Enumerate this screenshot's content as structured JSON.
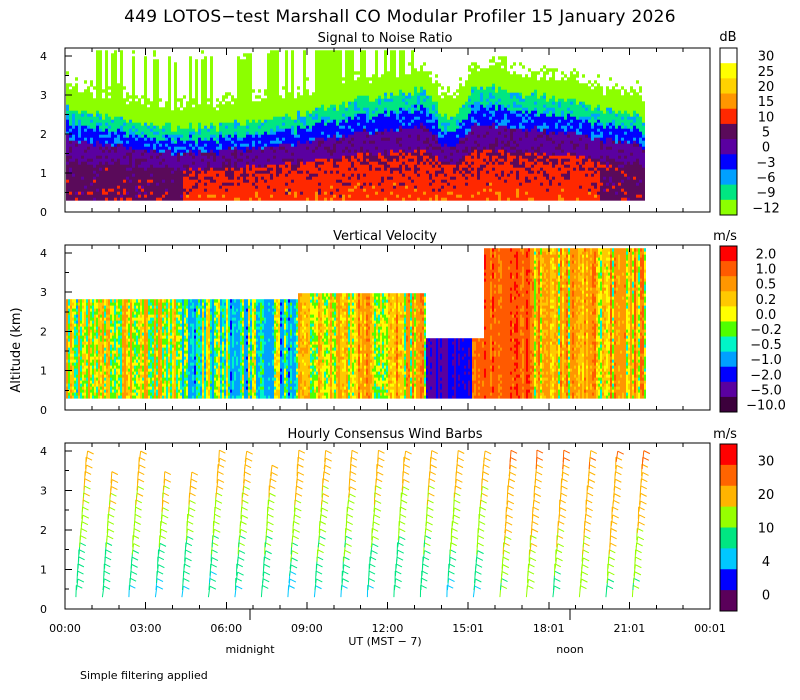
{
  "title": "449 LOTOS−test Marshall CO Modular Profiler 15 January 2026",
  "ylabel": "Altitude (km)",
  "footnote": "Simple filtering applied",
  "chart_data": [
    {
      "type": "heatmap",
      "title": "Signal to Noise Ratio",
      "unit": "dB",
      "ylim": [
        0,
        4.2
      ],
      "yticks": [
        "0",
        "1",
        "2",
        "3",
        "4"
      ],
      "colorbar_labels": [
        "30",
        "25",
        "20",
        "15",
        "10",
        "5",
        "0",
        "−3",
        "−6",
        "−9",
        "−12"
      ],
      "colorbar_colors": [
        "#ffffff",
        "#ffff00",
        "#ffd200",
        "#ff9600",
        "#ff2800",
        "#5a0a5a",
        "#5a00a0",
        "#0000ff",
        "#00a0ff",
        "#00e682",
        "#8cff00"
      ]
    },
    {
      "type": "heatmap",
      "title": "Vertical Velocity",
      "unit": "m/s",
      "ylim": [
        0,
        4.2
      ],
      "yticks": [
        "0",
        "1",
        "2",
        "3",
        "4"
      ],
      "colorbar_labels": [
        "2.0",
        "1.0",
        "0.5",
        "0.2",
        "0.0",
        "−0.2",
        "−0.5",
        "−1.0",
        "−2.0",
        "−5.0",
        "−10.0"
      ],
      "colorbar_colors": [
        "#ff0000",
        "#ff5a00",
        "#ff9600",
        "#ffc800",
        "#ffff00",
        "#50ff00",
        "#00f5c8",
        "#00a0ff",
        "#0000ff",
        "#5a00a0",
        "#3c003c"
      ]
    },
    {
      "type": "wind_barbs",
      "title": "Hourly Consensus Wind Barbs",
      "unit": "m/s",
      "ylim": [
        0,
        4.2
      ],
      "yticks": [
        "0",
        "1",
        "2",
        "3",
        "4"
      ],
      "colorbar_labels": [
        "30",
        "20",
        "10",
        "4",
        "0"
      ],
      "colorbar_colors": [
        "#ff0000",
        "#ff6400",
        "#ffb400",
        "#96ff00",
        "#00e682",
        "#00c8ff",
        "#0000ff",
        "#5a005a"
      ]
    }
  ],
  "xaxis": {
    "labels": [
      "00:00",
      "03:00",
      "06:00",
      "09:00",
      "12:00",
      "15:01",
      "18:01",
      "21:01",
      "00:01"
    ],
    "axis_label": "UT  (MST − 7)",
    "midnight_label": "midnight",
    "noon_label": "noon"
  }
}
